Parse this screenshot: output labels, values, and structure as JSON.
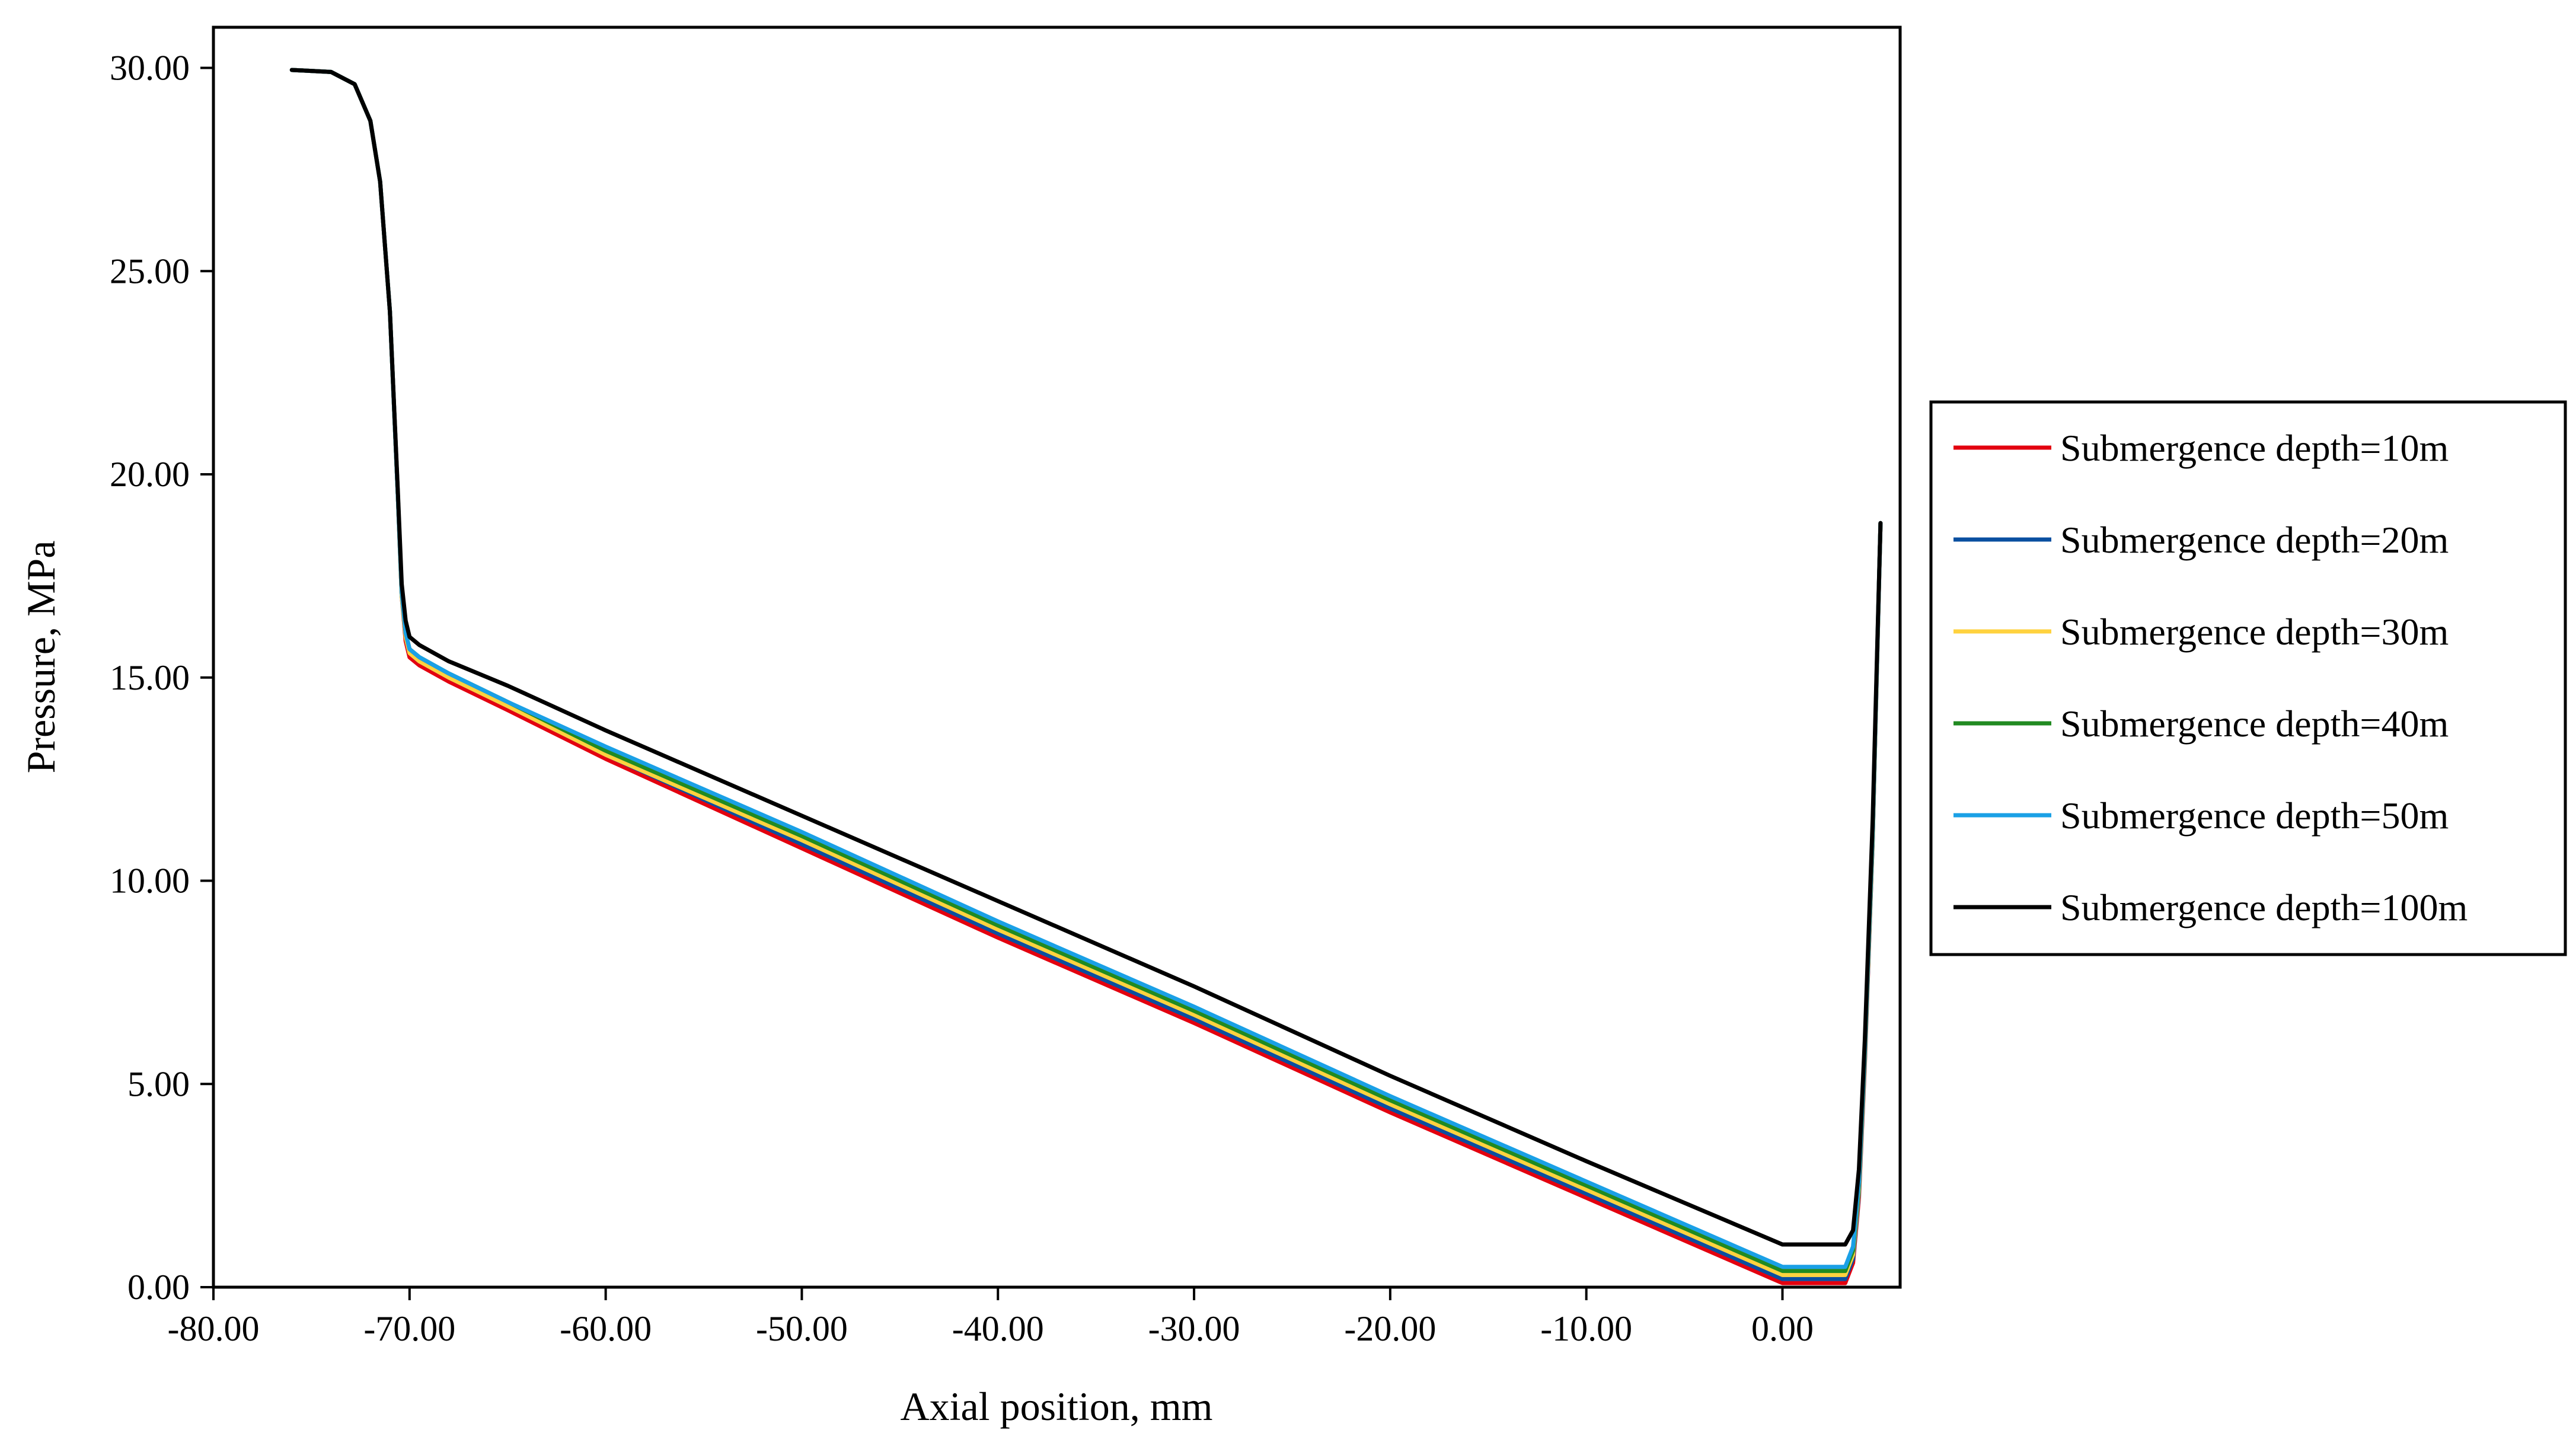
{
  "chart_data": {
    "type": "line",
    "title": "",
    "xlabel": "Axial position, mm",
    "ylabel": "Pressure, MPa",
    "xlim": [
      -80,
      6
    ],
    "ylim": [
      0,
      31
    ],
    "x_ticks": [
      -80,
      -70,
      -60,
      -50,
      -40,
      -30,
      -20,
      -10,
      0
    ],
    "x_tick_labels": [
      "-80.00",
      "-70.00",
      "-60.00",
      "-50.00",
      "-40.00",
      "-30.00",
      "-20.00",
      "-10.00",
      "0.00"
    ],
    "y_ticks": [
      0,
      5,
      10,
      15,
      20,
      25,
      30
    ],
    "y_tick_labels": [
      "0.00",
      "5.00",
      "10.00",
      "15.00",
      "20.00",
      "25.00",
      "30.00"
    ],
    "grid": false,
    "legend_position": "right",
    "x": [
      -76.0,
      -74.0,
      -72.8,
      -72.0,
      -71.5,
      -71.0,
      -70.6,
      -70.4,
      -70.2,
      -70.0,
      -69.5,
      -68.0,
      -65.0,
      -60.0,
      -50.0,
      -40.0,
      -30.0,
      -20.0,
      -10.0,
      0.0,
      0.4,
      2.0,
      3.2,
      3.6,
      3.9,
      4.2,
      4.6,
      5.0
    ],
    "series": [
      {
        "name": "Submergence depth=10m",
        "color": "#e3000f",
        "values": [
          29.95,
          29.9,
          29.6,
          28.7,
          27.2,
          24.0,
          19.5,
          17.0,
          15.9,
          15.5,
          15.3,
          14.9,
          14.2,
          13.0,
          10.8,
          8.6,
          6.5,
          4.3,
          2.2,
          0.1,
          0.1,
          0.1,
          0.1,
          0.6,
          2.2,
          5.5,
          11.0,
          18.8
        ]
      },
      {
        "name": "Submergence depth=20m",
        "color": "#0a4fa0",
        "values": [
          29.95,
          29.9,
          29.6,
          28.7,
          27.2,
          24.0,
          19.5,
          17.0,
          16.0,
          15.6,
          15.4,
          15.0,
          14.3,
          13.1,
          10.9,
          8.7,
          6.6,
          4.4,
          2.3,
          0.2,
          0.2,
          0.2,
          0.2,
          0.7,
          2.3,
          5.6,
          11.0,
          18.8
        ]
      },
      {
        "name": "Submergence depth=30m",
        "color": "#ffd23f",
        "values": [
          29.95,
          29.9,
          29.6,
          28.7,
          27.2,
          24.0,
          19.5,
          17.0,
          16.0,
          15.6,
          15.4,
          15.0,
          14.3,
          13.1,
          11.0,
          8.8,
          6.7,
          4.5,
          2.4,
          0.3,
          0.3,
          0.3,
          0.3,
          0.8,
          2.4,
          5.7,
          11.1,
          18.8
        ]
      },
      {
        "name": "Submergence depth=40m",
        "color": "#218a21",
        "values": [
          29.95,
          29.9,
          29.6,
          28.7,
          27.2,
          24.0,
          19.5,
          17.1,
          16.1,
          15.7,
          15.5,
          15.1,
          14.4,
          13.2,
          11.1,
          8.9,
          6.8,
          4.6,
          2.5,
          0.4,
          0.4,
          0.4,
          0.4,
          0.9,
          2.5,
          5.8,
          11.2,
          18.8
        ]
      },
      {
        "name": "Submergence depth=50m",
        "color": "#1aa0e6",
        "values": [
          29.95,
          29.9,
          29.6,
          28.7,
          27.2,
          24.0,
          19.5,
          17.1,
          16.1,
          15.7,
          15.5,
          15.1,
          14.4,
          13.3,
          11.2,
          9.0,
          6.9,
          4.7,
          2.6,
          0.5,
          0.5,
          0.5,
          0.5,
          1.0,
          2.6,
          5.9,
          11.3,
          18.8
        ]
      },
      {
        "name": "Submergence depth=100m",
        "color": "#000000",
        "values": [
          29.95,
          29.9,
          29.6,
          28.7,
          27.2,
          24.0,
          19.6,
          17.3,
          16.4,
          16.0,
          15.8,
          15.4,
          14.8,
          13.7,
          11.6,
          9.5,
          7.4,
          5.2,
          3.1,
          1.05,
          1.05,
          1.05,
          1.05,
          1.4,
          2.9,
          6.1,
          11.5,
          18.8
        ]
      }
    ]
  }
}
